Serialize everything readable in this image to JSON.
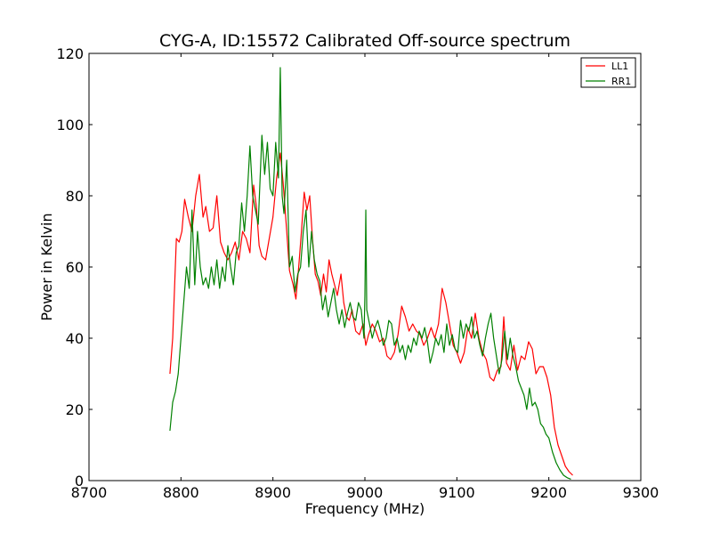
{
  "chart_data": {
    "type": "line",
    "title": "CYG-A, ID:15572 Calibrated Off-source spectrum",
    "xlabel": "Frequency (MHz)",
    "ylabel": "Power in Kelvin",
    "xlim": [
      8700,
      9300
    ],
    "ylim": [
      0,
      120
    ],
    "xticks": [
      8700,
      8800,
      8900,
      9000,
      9100,
      9200,
      9300
    ],
    "yticks": [
      0,
      20,
      40,
      60,
      80,
      100,
      120
    ],
    "grid": false,
    "legend_position": "top-right",
    "series": [
      {
        "name": "LL1",
        "color": "#ff0000",
        "points": [
          [
            8788,
            30
          ],
          [
            8791,
            40
          ],
          [
            8795,
            68
          ],
          [
            8798,
            67
          ],
          [
            8801,
            70
          ],
          [
            8804,
            79
          ],
          [
            8808,
            74
          ],
          [
            8812,
            70
          ],
          [
            8816,
            80
          ],
          [
            8820,
            86
          ],
          [
            8824,
            74
          ],
          [
            8827,
            77
          ],
          [
            8831,
            70
          ],
          [
            8835,
            71
          ],
          [
            8839,
            80
          ],
          [
            8843,
            67
          ],
          [
            8847,
            64
          ],
          [
            8851,
            62
          ],
          [
            8855,
            64
          ],
          [
            8859,
            67
          ],
          [
            8863,
            62
          ],
          [
            8867,
            70
          ],
          [
            8871,
            68
          ],
          [
            8875,
            64
          ],
          [
            8879,
            83
          ],
          [
            8882,
            77
          ],
          [
            8885,
            66
          ],
          [
            8888,
            63
          ],
          [
            8892,
            62
          ],
          [
            8896,
            68
          ],
          [
            8900,
            74
          ],
          [
            8904,
            85
          ],
          [
            8908,
            92
          ],
          [
            8911,
            84
          ],
          [
            8915,
            70
          ],
          [
            8918,
            59
          ],
          [
            8922,
            55
          ],
          [
            8925,
            51
          ],
          [
            8928,
            60
          ],
          [
            8931,
            70
          ],
          [
            8934,
            81
          ],
          [
            8937,
            76
          ],
          [
            8940,
            80
          ],
          [
            8943,
            68
          ],
          [
            8946,
            58
          ],
          [
            8949,
            56
          ],
          [
            8952,
            52
          ],
          [
            8955,
            58
          ],
          [
            8958,
            53
          ],
          [
            8961,
            62
          ],
          [
            8964,
            58
          ],
          [
            8967,
            55
          ],
          [
            8970,
            52
          ],
          [
            8974,
            58
          ],
          [
            8977,
            50
          ],
          [
            8980,
            46
          ],
          [
            8983,
            45
          ],
          [
            8986,
            48
          ],
          [
            8990,
            42
          ],
          [
            8994,
            41
          ],
          [
            8998,
            44
          ],
          [
            9001,
            38
          ],
          [
            9004,
            41
          ],
          [
            9008,
            44
          ],
          [
            9012,
            42
          ],
          [
            9016,
            39
          ],
          [
            9020,
            40
          ],
          [
            9024,
            35
          ],
          [
            9028,
            34
          ],
          [
            9032,
            36
          ],
          [
            9036,
            41
          ],
          [
            9040,
            49
          ],
          [
            9044,
            46
          ],
          [
            9048,
            42
          ],
          [
            9052,
            44
          ],
          [
            9056,
            42
          ],
          [
            9060,
            41
          ],
          [
            9064,
            38
          ],
          [
            9068,
            40
          ],
          [
            9072,
            43
          ],
          [
            9076,
            40
          ],
          [
            9080,
            44
          ],
          [
            9084,
            54
          ],
          [
            9088,
            50
          ],
          [
            9092,
            44
          ],
          [
            9096,
            38
          ],
          [
            9100,
            36
          ],
          [
            9104,
            33
          ],
          [
            9108,
            36
          ],
          [
            9112,
            43
          ],
          [
            9116,
            40
          ],
          [
            9120,
            47
          ],
          [
            9124,
            40
          ],
          [
            9128,
            36
          ],
          [
            9132,
            34
          ],
          [
            9136,
            29
          ],
          [
            9140,
            28
          ],
          [
            9144,
            31
          ],
          [
            9148,
            32
          ],
          [
            9151,
            46
          ],
          [
            9154,
            33
          ],
          [
            9158,
            31
          ],
          [
            9162,
            38
          ],
          [
            9166,
            31
          ],
          [
            9170,
            35
          ],
          [
            9174,
            34
          ],
          [
            9178,
            39
          ],
          [
            9182,
            37
          ],
          [
            9186,
            30
          ],
          [
            9190,
            32
          ],
          [
            9194,
            32
          ],
          [
            9198,
            29
          ],
          [
            9202,
            24
          ],
          [
            9206,
            15
          ],
          [
            9210,
            10
          ],
          [
            9214,
            7
          ],
          [
            9218,
            4
          ],
          [
            9222,
            2.5
          ],
          [
            9226,
            1.5
          ]
        ]
      },
      {
        "name": "RR1",
        "color": "#008000",
        "points": [
          [
            8788,
            14
          ],
          [
            8791,
            22
          ],
          [
            8794,
            25
          ],
          [
            8797,
            30
          ],
          [
            8800,
            40
          ],
          [
            8803,
            50
          ],
          [
            8806,
            60
          ],
          [
            8809,
            54
          ],
          [
            8812,
            76
          ],
          [
            8815,
            55
          ],
          [
            8818,
            70
          ],
          [
            8821,
            60
          ],
          [
            8824,
            55
          ],
          [
            8827,
            57
          ],
          [
            8830,
            54
          ],
          [
            8833,
            60
          ],
          [
            8836,
            55
          ],
          [
            8839,
            62
          ],
          [
            8842,
            54
          ],
          [
            8845,
            60
          ],
          [
            8848,
            56
          ],
          [
            8851,
            66
          ],
          [
            8854,
            60
          ],
          [
            8857,
            55
          ],
          [
            8860,
            64
          ],
          [
            8863,
            66
          ],
          [
            8866,
            78
          ],
          [
            8869,
            70
          ],
          [
            8872,
            80
          ],
          [
            8875,
            94
          ],
          [
            8878,
            80
          ],
          [
            8881,
            76
          ],
          [
            8884,
            72
          ],
          [
            8888,
            97
          ],
          [
            8891,
            86
          ],
          [
            8894,
            95
          ],
          [
            8897,
            82
          ],
          [
            8900,
            80
          ],
          [
            8903,
            95
          ],
          [
            8906,
            85
          ],
          [
            8908,
            116
          ],
          [
            8910,
            80
          ],
          [
            8912,
            75
          ],
          [
            8915,
            90
          ],
          [
            8918,
            60
          ],
          [
            8921,
            63
          ],
          [
            8924,
            53
          ],
          [
            8927,
            58
          ],
          [
            8930,
            60
          ],
          [
            8933,
            70
          ],
          [
            8936,
            76
          ],
          [
            8939,
            60
          ],
          [
            8942,
            70
          ],
          [
            8945,
            62
          ],
          [
            8948,
            58
          ],
          [
            8951,
            56
          ],
          [
            8954,
            48
          ],
          [
            8957,
            52
          ],
          [
            8960,
            46
          ],
          [
            8963,
            50
          ],
          [
            8966,
            54
          ],
          [
            8969,
            48
          ],
          [
            8972,
            44
          ],
          [
            8975,
            48
          ],
          [
            8978,
            43
          ],
          [
            8981,
            47
          ],
          [
            8984,
            50
          ],
          [
            8987,
            46
          ],
          [
            8990,
            45
          ],
          [
            8993,
            50
          ],
          [
            8996,
            48
          ],
          [
            8999,
            40
          ],
          [
            9000,
            52
          ],
          [
            9001,
            76
          ],
          [
            9002,
            48
          ],
          [
            9005,
            44
          ],
          [
            9008,
            40
          ],
          [
            9011,
            43
          ],
          [
            9014,
            45
          ],
          [
            9017,
            42
          ],
          [
            9020,
            38
          ],
          [
            9023,
            40
          ],
          [
            9026,
            45
          ],
          [
            9029,
            44
          ],
          [
            9032,
            38
          ],
          [
            9035,
            40
          ],
          [
            9038,
            36
          ],
          [
            9041,
            38
          ],
          [
            9044,
            34
          ],
          [
            9047,
            38
          ],
          [
            9050,
            36
          ],
          [
            9053,
            40
          ],
          [
            9056,
            38
          ],
          [
            9059,
            42
          ],
          [
            9062,
            40
          ],
          [
            9065,
            43
          ],
          [
            9068,
            39
          ],
          [
            9071,
            33
          ],
          [
            9074,
            36
          ],
          [
            9077,
            40
          ],
          [
            9080,
            38
          ],
          [
            9083,
            41
          ],
          [
            9086,
            36
          ],
          [
            9089,
            44
          ],
          [
            9092,
            38
          ],
          [
            9095,
            41
          ],
          [
            9098,
            37
          ],
          [
            9101,
            36
          ],
          [
            9104,
            45
          ],
          [
            9107,
            40
          ],
          [
            9110,
            44
          ],
          [
            9113,
            42
          ],
          [
            9116,
            46
          ],
          [
            9119,
            40
          ],
          [
            9122,
            42
          ],
          [
            9125,
            38
          ],
          [
            9128,
            35
          ],
          [
            9131,
            40
          ],
          [
            9134,
            44
          ],
          [
            9137,
            47
          ],
          [
            9140,
            40
          ],
          [
            9143,
            35
          ],
          [
            9146,
            30
          ],
          [
            9149,
            34
          ],
          [
            9152,
            42
          ],
          [
            9155,
            34
          ],
          [
            9158,
            40
          ],
          [
            9161,
            35
          ],
          [
            9164,
            32
          ],
          [
            9167,
            28
          ],
          [
            9170,
            26
          ],
          [
            9173,
            24
          ],
          [
            9176,
            20
          ],
          [
            9179,
            26
          ],
          [
            9182,
            21
          ],
          [
            9185,
            22
          ],
          [
            9188,
            20
          ],
          [
            9191,
            16
          ],
          [
            9194,
            15
          ],
          [
            9197,
            13
          ],
          [
            9200,
            12
          ],
          [
            9204,
            8
          ],
          [
            9208,
            5
          ],
          [
            9212,
            3
          ],
          [
            9216,
            1.5
          ],
          [
            9220,
            0.8
          ],
          [
            9224,
            0.4
          ]
        ]
      }
    ]
  }
}
